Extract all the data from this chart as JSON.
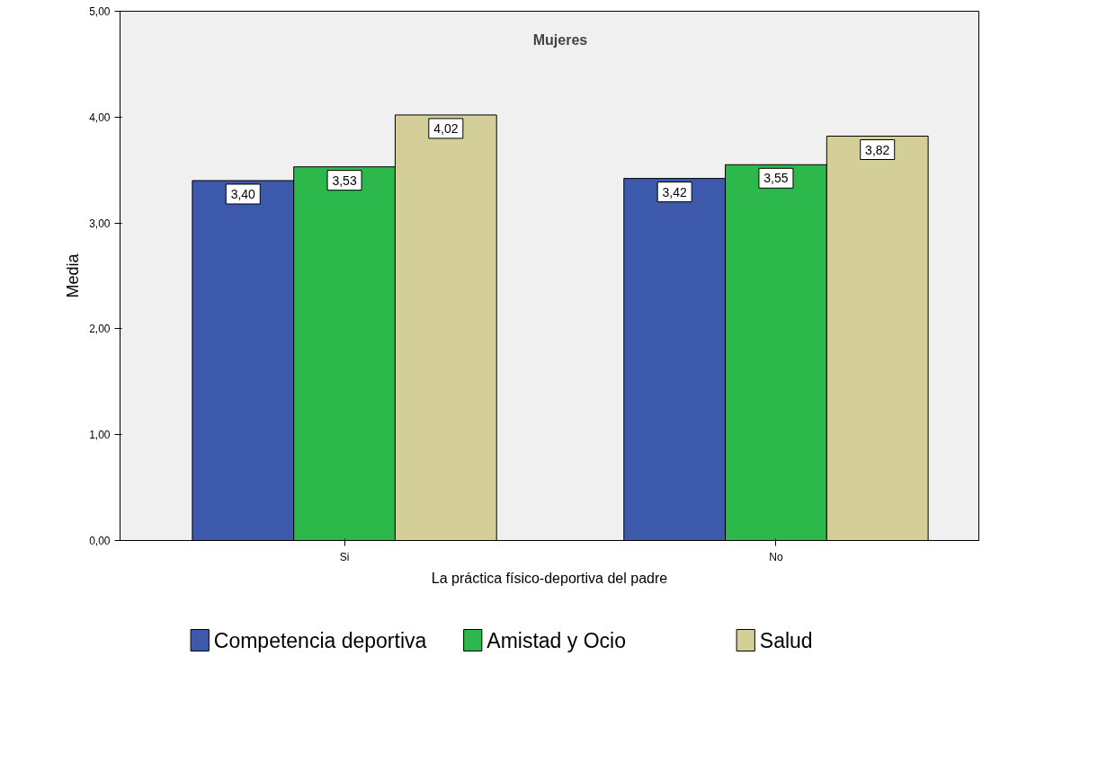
{
  "chart_data": {
    "type": "bar",
    "title": "Mujeres",
    "xlabel": "La práctica físico-deportiva del padre",
    "ylabel": "Media",
    "categories": [
      "Si",
      "No"
    ],
    "series": [
      {
        "name": "Competencia deportiva",
        "color": "#3d59ab",
        "values": [
          3.4,
          3.42
        ],
        "value_labels": [
          "3,40",
          "3,42"
        ]
      },
      {
        "name": "Amistad y Ocio",
        "color": "#2db84b",
        "values": [
          3.53,
          3.55
        ],
        "value_labels": [
          "3,53",
          "3,55"
        ]
      },
      {
        "name": "Salud",
        "color": "#d4cf98",
        "values": [
          4.02,
          3.82
        ],
        "value_labels": [
          "4,02",
          "3,82"
        ]
      }
    ],
    "ylim": [
      0,
      5
    ],
    "yticks": [
      {
        "value": 0,
        "label": "0,00"
      },
      {
        "value": 1,
        "label": "1,00"
      },
      {
        "value": 2,
        "label": "2,00"
      },
      {
        "value": 3,
        "label": "3,00"
      },
      {
        "value": 4,
        "label": "4,00"
      },
      {
        "value": 5,
        "label": "5,00"
      }
    ],
    "grid": false,
    "legend": "bottom"
  }
}
